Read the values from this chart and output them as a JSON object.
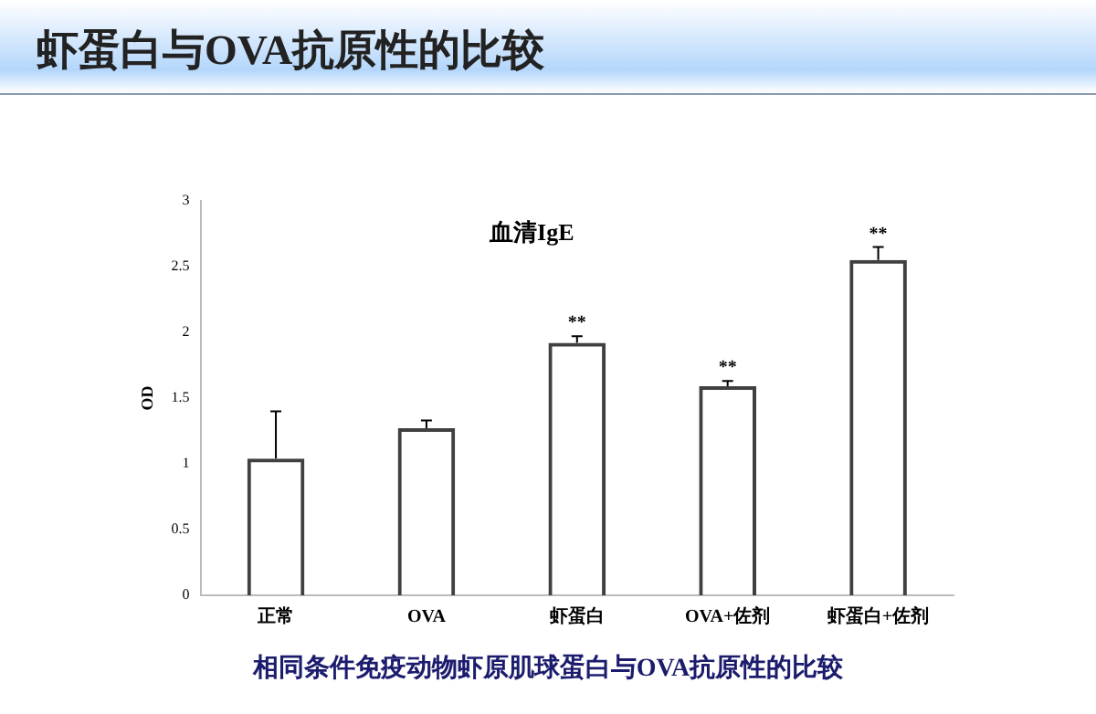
{
  "chart_data": {
    "type": "bar",
    "title": "虾蛋白与OVA抗原性的比较",
    "subtitle": "血清IgE",
    "ylabel": "OD",
    "categories": [
      "正常",
      "OVA",
      "虾蛋白",
      "OVA+佐剂",
      "虾蛋白+佐剂"
    ],
    "values": [
      1.04,
      1.27,
      1.92,
      1.59,
      2.55
    ],
    "errors": [
      [
        1.04,
        1.4
      ],
      [
        1.27,
        1.33
      ],
      [
        1.92,
        1.97
      ],
      [
        1.59,
        1.63
      ],
      [
        2.55,
        2.65
      ]
    ],
    "color": "#404040",
    "ylim": [
      0,
      3
    ],
    "yticks": [
      0,
      0.5,
      1,
      1.5,
      2,
      2.5,
      3
    ],
    "grid": false,
    "legend": false,
    "annotations": [
      {
        "text": "**",
        "x": "虾蛋白",
        "y": 1.97
      },
      {
        "text": "**",
        "x": "OVA+佐剂",
        "y": 1.63
      },
      {
        "text": "**",
        "x": "虾蛋白+佐剂",
        "y": 2.65
      },
      "相同条件免疫动物虾原肌球蛋白与OVA抗原性的比较"
    ]
  }
}
